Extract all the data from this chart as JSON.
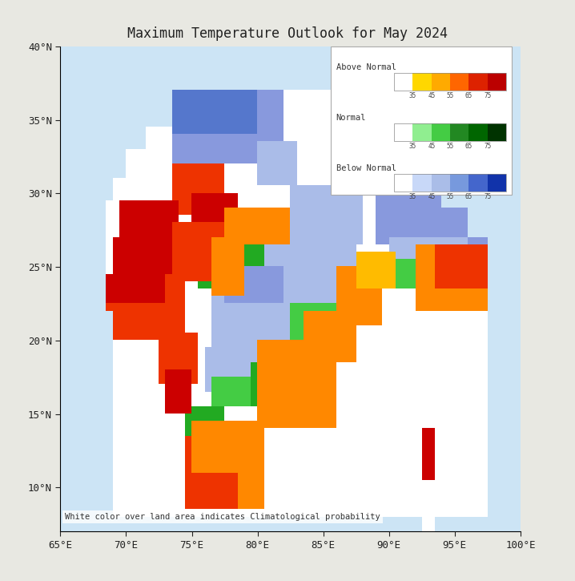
{
  "title": "Maximum Temperature Outlook for May 2024",
  "title_fontsize": 12,
  "title_fontfamily": "monospace",
  "xlim": [
    65,
    100
  ],
  "ylim": [
    7,
    40
  ],
  "xticks": [
    65,
    70,
    75,
    80,
    85,
    90,
    95,
    100
  ],
  "yticks": [
    10,
    15,
    20,
    25,
    30,
    35,
    40
  ],
  "fig_bg": "#e8e8e2",
  "ax_bg": "#cce4f5",
  "border_color": "#111111",
  "legend_title_above": "Above Normal",
  "legend_title_normal": "Normal",
  "legend_title_below": "Below Normal",
  "legend_ticks": [
    "35",
    "45",
    "55",
    "65",
    "75"
  ],
  "above_normal_colors": [
    "#ffffff",
    "#ffd700",
    "#ffaa00",
    "#ff6600",
    "#dd2200",
    "#bb0000"
  ],
  "normal_colors": [
    "#ffffff",
    "#90ee90",
    "#44cc44",
    "#228822",
    "#006600",
    "#003300"
  ],
  "below_normal_colors": [
    "#ffffff",
    "#c8d8f8",
    "#aabde8",
    "#7799dd",
    "#4466cc",
    "#1133aa"
  ],
  "footnote": "White color over land area indicates Climatological probability",
  "footnote_fontsize": 7.5,
  "legend_box_color": "#f0f0f0"
}
